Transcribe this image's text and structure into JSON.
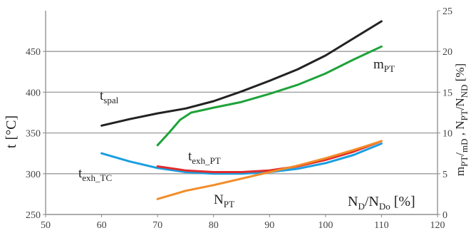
{
  "chart_data": {
    "type": "line",
    "title": "",
    "x_axis": {
      "range": [
        50,
        120
      ],
      "ticks": [
        "50",
        "60",
        "70",
        "80",
        "90",
        "100",
        "110",
        "120"
      ],
      "label": {
        "main": "N",
        "sub1": "D",
        "mid": "/N",
        "sub2": "Do",
        "tail": " [%]"
      }
    },
    "y_left": {
      "range": [
        250,
        500
      ],
      "ticks": [
        "250",
        "300",
        "350",
        "400",
        "450"
      ],
      "label": {
        "main": "t",
        "tail": "[°C]"
      }
    },
    "y_right": {
      "range": [
        0,
        25
      ],
      "ticks": [
        "0",
        "5",
        "10",
        "15",
        "20",
        "25"
      ],
      "label": {
        "p1": "m",
        "s1": "PT",
        "p2": "/",
        "s2": "mD",
        "p3": " , N",
        "s3": "PT",
        "p4": "/N",
        "s4": "ND",
        "p5": " [%]"
      }
    },
    "grid": {
      "horizontal": true,
      "vertical": false
    },
    "series": [
      {
        "name": {
          "main": "t",
          "sub": "spal"
        },
        "axis": "left",
        "color": "#222222",
        "x": [
          60,
          65,
          70,
          75,
          80,
          85,
          90,
          95,
          100,
          105,
          110
        ],
        "y": [
          359,
          367,
          374,
          380,
          389,
          401,
          414,
          428,
          445,
          466,
          487
        ]
      },
      {
        "name": {
          "main": "m",
          "sub": "PT"
        },
        "axis": "right",
        "color": "#1fa33a",
        "x": [
          70,
          72,
          74,
          76,
          78,
          80,
          85,
          90,
          95,
          100,
          105,
          110
        ],
        "y": [
          8.5,
          10.0,
          11.6,
          12.5,
          12.8,
          13.1,
          13.8,
          14.8,
          15.9,
          17.3,
          19.0,
          20.6
        ]
      },
      {
        "name": {
          "main": "t",
          "sub": "exh_TC"
        },
        "axis": "left",
        "color": "#1a9ee0",
        "x": [
          60,
          65,
          70,
          75,
          80,
          85,
          90,
          95,
          100,
          105,
          110
        ],
        "y": [
          325,
          315,
          307,
          302,
          300,
          300,
          302,
          306,
          313,
          323,
          337
        ]
      },
      {
        "name": {
          "main": "t",
          "sub": "exh_PT"
        },
        "axis": "left",
        "color": "#e02b2b",
        "x": [
          70,
          75,
          80,
          85,
          90,
          95,
          100,
          105,
          110
        ],
        "y": [
          309,
          304,
          302,
          302,
          304,
          309,
          317,
          327,
          340
        ]
      },
      {
        "name": {
          "main": "N",
          "sub": "PT"
        },
        "axis": "right",
        "color": "#f28c28",
        "x": [
          70,
          75,
          80,
          85,
          90,
          95,
          100,
          105,
          110
        ],
        "y": [
          1.9,
          2.9,
          3.6,
          4.4,
          5.2,
          6.0,
          6.9,
          7.9,
          9.0
        ]
      }
    ]
  }
}
